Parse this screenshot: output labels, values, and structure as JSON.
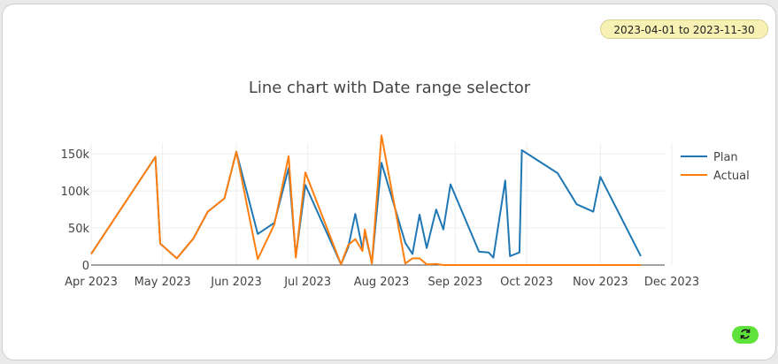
{
  "range_selector": {
    "label": "2023-04-01 to 2023-11-30"
  },
  "refresh": {
    "icon": "refresh-icon",
    "color": "#5fe23c"
  },
  "chart_data": {
    "type": "line",
    "title": "Line chart with Date range selector",
    "xlabel": "",
    "ylabel": "",
    "xlim": [
      "2023-04-01",
      "2023-12-01"
    ],
    "ylim": [
      0,
      180000
    ],
    "x_ticks": [
      {
        "date": "2023-04-01",
        "label": "Apr 2023"
      },
      {
        "date": "2023-05-01",
        "label": "May 2023"
      },
      {
        "date": "2023-06-01",
        "label": "Jun 2023"
      },
      {
        "date": "2023-07-01",
        "label": "Jul 2023"
      },
      {
        "date": "2023-08-01",
        "label": "Aug 2023"
      },
      {
        "date": "2023-09-01",
        "label": "Sep 2023"
      },
      {
        "date": "2023-10-01",
        "label": "Oct 2023"
      },
      {
        "date": "2023-11-01",
        "label": "Nov 2023"
      },
      {
        "date": "2023-12-01",
        "label": "Dec 2023"
      }
    ],
    "y_ticks": [
      {
        "value": 0,
        "label": "0"
      },
      {
        "value": 50000,
        "label": "50k"
      },
      {
        "value": 100000,
        "label": "100k"
      },
      {
        "value": 150000,
        "label": "150k"
      }
    ],
    "grid": true,
    "legend_position": "right",
    "series": [
      {
        "name": "Plan",
        "color": "#1f77b4",
        "points": [
          [
            "2023-04-01",
            15000
          ],
          [
            "2023-04-28",
            146000
          ],
          [
            "2023-04-30",
            29000
          ],
          [
            "2023-05-07",
            9000
          ],
          [
            "2023-05-14",
            36000
          ],
          [
            "2023-05-20",
            72000
          ],
          [
            "2023-05-27",
            90000
          ],
          [
            "2023-06-01",
            153000
          ],
          [
            "2023-06-10",
            42000
          ],
          [
            "2023-06-17",
            57000
          ],
          [
            "2023-06-23",
            131000
          ],
          [
            "2023-06-26",
            12000
          ],
          [
            "2023-06-30",
            108000
          ],
          [
            "2023-07-15",
            1000
          ],
          [
            "2023-07-18",
            24000
          ],
          [
            "2023-07-21",
            69000
          ],
          [
            "2023-07-24",
            22000
          ],
          [
            "2023-07-25",
            44000
          ],
          [
            "2023-07-28",
            3000
          ],
          [
            "2023-08-01",
            138000
          ],
          [
            "2023-08-11",
            30000
          ],
          [
            "2023-08-14",
            15000
          ],
          [
            "2023-08-17",
            68000
          ],
          [
            "2023-08-20",
            23000
          ],
          [
            "2023-08-24",
            75000
          ],
          [
            "2023-08-27",
            48000
          ],
          [
            "2023-08-30",
            109000
          ],
          [
            "2023-09-11",
            18000
          ],
          [
            "2023-09-15",
            17000
          ],
          [
            "2023-09-17",
            10000
          ],
          [
            "2023-09-22",
            114000
          ],
          [
            "2023-09-24",
            12000
          ],
          [
            "2023-09-28",
            17000
          ],
          [
            "2023-09-29",
            155000
          ],
          [
            "2023-10-14",
            124000
          ],
          [
            "2023-10-22",
            82000
          ],
          [
            "2023-10-29",
            72000
          ],
          [
            "2023-11-01",
            119000
          ],
          [
            "2023-11-18",
            12000
          ]
        ]
      },
      {
        "name": "Actual",
        "color": "#ff7f0e",
        "points": [
          [
            "2023-04-01",
            15000
          ],
          [
            "2023-04-28",
            146000
          ],
          [
            "2023-04-30",
            29000
          ],
          [
            "2023-05-07",
            9000
          ],
          [
            "2023-05-14",
            36000
          ],
          [
            "2023-05-20",
            72000
          ],
          [
            "2023-05-27",
            90000
          ],
          [
            "2023-06-01",
            153000
          ],
          [
            "2023-06-10",
            8000
          ],
          [
            "2023-06-17",
            55000
          ],
          [
            "2023-06-23",
            147000
          ],
          [
            "2023-06-26",
            10000
          ],
          [
            "2023-06-30",
            125000
          ],
          [
            "2023-07-15",
            1000
          ],
          [
            "2023-07-18",
            27000
          ],
          [
            "2023-07-21",
            35000
          ],
          [
            "2023-07-24",
            19000
          ],
          [
            "2023-07-25",
            48000
          ],
          [
            "2023-07-28",
            2000
          ],
          [
            "2023-08-01",
            175000
          ],
          [
            "2023-08-11",
            2000
          ],
          [
            "2023-08-14",
            9000
          ],
          [
            "2023-08-17",
            9000
          ],
          [
            "2023-08-20",
            1000
          ],
          [
            "2023-08-24",
            1500
          ],
          [
            "2023-08-27",
            0
          ],
          [
            "2023-08-30",
            0
          ],
          [
            "2023-09-11",
            0
          ],
          [
            "2023-09-15",
            0
          ],
          [
            "2023-09-17",
            0
          ],
          [
            "2023-09-22",
            0
          ],
          [
            "2023-09-24",
            0
          ],
          [
            "2023-09-28",
            0
          ],
          [
            "2023-09-29",
            0
          ],
          [
            "2023-10-14",
            0
          ],
          [
            "2023-10-22",
            0
          ],
          [
            "2023-10-29",
            0
          ],
          [
            "2023-11-01",
            0
          ],
          [
            "2023-11-18",
            0
          ]
        ]
      }
    ]
  }
}
